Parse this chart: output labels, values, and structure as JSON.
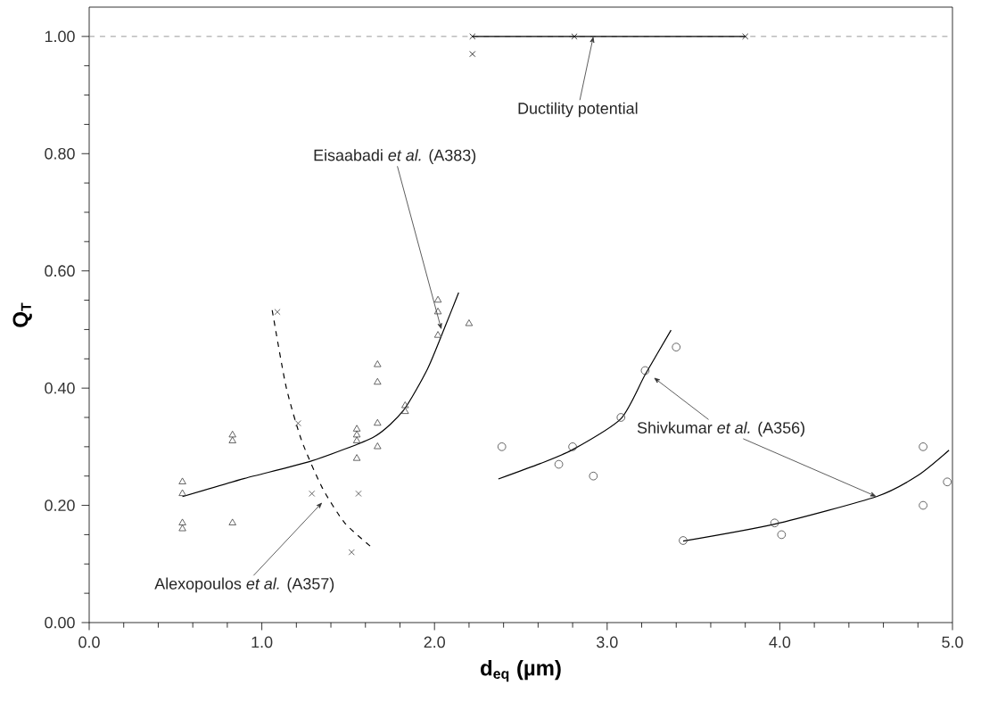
{
  "chart_data": {
    "type": "scatter",
    "xlabel": "**d$_{eq}$ (µm)**",
    "ylabel": "**Q$_{T}$**",
    "xlim": [
      0,
      5
    ],
    "ylim": [
      0,
      1.05
    ],
    "xticks": [
      {
        "value": 0,
        "label": "0.0"
      },
      {
        "value": 1,
        "label": "1.0"
      },
      {
        "value": 2,
        "label": "2.0"
      },
      {
        "value": 3,
        "label": "3.0"
      },
      {
        "value": 4,
        "label": "4.0"
      },
      {
        "value": 5,
        "label": "5.0"
      }
    ],
    "yticks": [
      {
        "value": 0,
        "label": "0.00"
      },
      {
        "value": 0.2,
        "label": "0.20"
      },
      {
        "value": 0.4,
        "label": "0.40"
      },
      {
        "value": 0.6,
        "label": "0.60"
      },
      {
        "value": 0.8,
        "label": "0.80"
      },
      {
        "value": 1.0,
        "label": "1.00"
      }
    ],
    "grid": false,
    "ref_lines": [
      {
        "axis": "y",
        "value": 1.0,
        "color": "#808080",
        "line_style": "dashed"
      }
    ],
    "series": [
      {
        "marker": "triangle",
        "color": "#404040",
        "x": [
          0.54,
          0.54,
          0.54,
          0.54,
          0.83,
          0.83,
          0.83,
          1.55,
          1.55,
          1.55,
          1.55,
          1.67,
          1.67,
          1.67,
          1.67,
          1.83,
          1.83,
          2.02,
          2.02,
          2.02,
          2.2
        ],
        "values": [
          0.24,
          0.22,
          0.17,
          0.16,
          0.32,
          0.31,
          0.17,
          0.33,
          0.32,
          0.31,
          0.28,
          0.44,
          0.41,
          0.34,
          0.3,
          0.37,
          0.36,
          0.55,
          0.53,
          0.49,
          0.51
        ]
      },
      {
        "type": "line",
        "marker": "none",
        "line_style": "solid",
        "color": "#000000",
        "x": [
          0.54,
          0.9,
          1.29,
          1.65,
          1.82,
          1.96,
          2.06,
          2.14
        ],
        "values": [
          0.215,
          0.246,
          0.276,
          0.317,
          0.362,
          0.433,
          0.504,
          0.563
        ]
      },
      {
        "marker": "cross",
        "color": "#404040",
        "x": [
          1.09,
          1.21,
          1.29,
          1.56,
          1.52
        ],
        "values": [
          0.53,
          0.34,
          0.22,
          0.22,
          0.12
        ]
      },
      {
        "type": "line",
        "marker": "none",
        "line_style": "dashed",
        "color": "#000000",
        "x": [
          1.06,
          1.14,
          1.23,
          1.35,
          1.48,
          1.63
        ],
        "values": [
          0.533,
          0.403,
          0.311,
          0.23,
          0.17,
          0.13
        ]
      },
      {
        "marker": "circle",
        "color": "#404040",
        "x": [
          2.39,
          2.72,
          2.8,
          2.92,
          3.08,
          3.22,
          3.4,
          3.44,
          3.97,
          4.01,
          4.83,
          4.83,
          4.97
        ],
        "values": [
          0.3,
          0.27,
          0.3,
          0.25,
          0.35,
          0.43,
          0.47,
          0.14,
          0.17,
          0.15,
          0.3,
          0.2,
          0.24
        ]
      },
      {
        "type": "line",
        "marker": "none",
        "line_style": "solid",
        "color": "#000000",
        "x": [
          2.37,
          2.61,
          2.8,
          3.08,
          3.22,
          3.37
        ],
        "values": [
          0.245,
          0.271,
          0.295,
          0.348,
          0.423,
          0.499
        ]
      },
      {
        "type": "line",
        "marker": "none",
        "line_style": "solid",
        "color": "#000000",
        "x": [
          3.44,
          3.97,
          4.56,
          4.8,
          4.98
        ],
        "values": [
          0.139,
          0.168,
          0.215,
          0.251,
          0.294
        ]
      },
      {
        "type": "line",
        "marker": "none",
        "line_style": "solid",
        "color": "#000000",
        "x": [
          2.22,
          2.81,
          3.8
        ],
        "values": [
          1.0,
          1.0,
          1.0
        ]
      },
      {
        "marker": "cross",
        "color": "#000000",
        "x": [
          2.22,
          2.22,
          2.81,
          3.8
        ],
        "values": [
          1.0,
          0.97,
          1.0,
          1.0
        ]
      }
    ],
    "annotations": [
      {
        "text": "Ductility potential",
        "x": 2.92,
        "y": 1.0
      },
      {
        "text": "Eisaabadi *et al.* (A383)",
        "x": 2.04,
        "y": 0.5
      },
      {
        "text": "Alexopoulos *et al.* (A357)",
        "x": 1.35,
        "y": 0.205
      },
      {
        "text": "Shivkumar *et al.* (A356)",
        "x": 3.27,
        "y": 0.418
      }
    ]
  }
}
